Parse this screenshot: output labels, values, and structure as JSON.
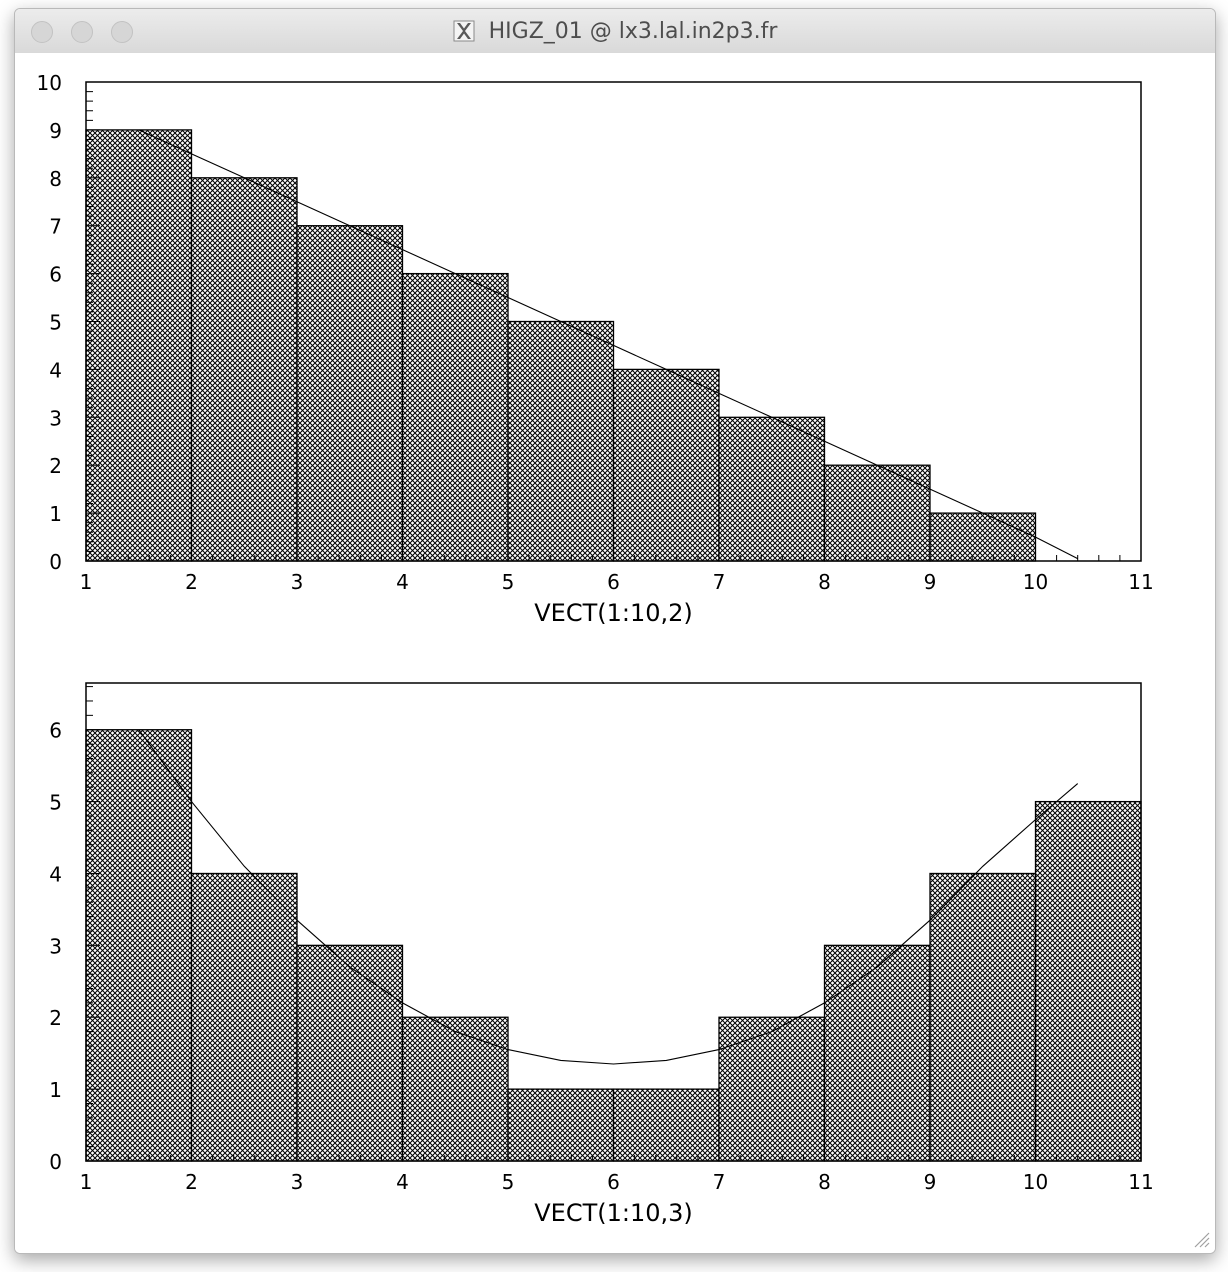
{
  "window": {
    "title": "HIGZ_01 @ lx3.lal.in2p3.fr",
    "x_icon": "x11-icon",
    "buttons": [
      "close-button",
      "minimize-button",
      "zoom-button"
    ]
  },
  "chart_data": [
    {
      "type": "bar",
      "xlabel": "VECT(1:10,2)",
      "ylabel": "",
      "bins": [
        [
          1,
          2
        ],
        [
          2,
          3
        ],
        [
          3,
          4
        ],
        [
          4,
          5
        ],
        [
          5,
          6
        ],
        [
          6,
          7
        ],
        [
          7,
          8
        ],
        [
          8,
          9
        ],
        [
          9,
          10
        ],
        [
          10,
          11
        ]
      ],
      "values": [
        9,
        8,
        7,
        6,
        5,
        4,
        3,
        2,
        1,
        0
      ],
      "xlim": [
        1,
        11
      ],
      "ylim": [
        0,
        10
      ],
      "xticks": [
        "1",
        "2",
        "3",
        "4",
        "5",
        "6",
        "7",
        "8",
        "9",
        "10",
        "11"
      ],
      "yticks": [
        "0",
        "1",
        "2",
        "3",
        "4",
        "5",
        "6",
        "7",
        "8",
        "9",
        "10"
      ],
      "fill": "cross-hatch",
      "fit_curve": {
        "x": [
          1.5,
          2.0,
          2.5,
          3.0,
          3.5,
          4.0,
          4.5,
          5.0,
          5.5,
          6.0,
          6.5,
          7.0,
          7.5,
          8.0,
          8.5,
          9.0,
          9.5,
          10.0,
          10.4
        ],
        "y": [
          9.0,
          8.5,
          8.0,
          7.5,
          7.0,
          6.5,
          6.0,
          5.5,
          5.0,
          4.5,
          4.0,
          3.5,
          3.0,
          2.5,
          2.0,
          1.5,
          1.0,
          0.5,
          0.05
        ]
      }
    },
    {
      "type": "bar",
      "xlabel": "VECT(1:10,3)",
      "ylabel": "",
      "bins": [
        [
          1,
          2
        ],
        [
          2,
          3
        ],
        [
          3,
          4
        ],
        [
          4,
          5
        ],
        [
          5,
          6
        ],
        [
          6,
          7
        ],
        [
          7,
          8
        ],
        [
          8,
          9
        ],
        [
          9,
          10
        ],
        [
          10,
          11
        ]
      ],
      "values": [
        6,
        4,
        3,
        2,
        1,
        1,
        2,
        3,
        4,
        5
      ],
      "xlim": [
        1,
        11
      ],
      "ylim": [
        0,
        6.65
      ],
      "xticks": [
        "1",
        "2",
        "3",
        "4",
        "5",
        "6",
        "7",
        "8",
        "9",
        "10",
        "11"
      ],
      "yticks": [
        "0",
        "1",
        "2",
        "3",
        "4",
        "5",
        "6"
      ],
      "fill": "cross-hatch",
      "fit_curve": {
        "x": [
          1.5,
          2.0,
          2.5,
          3.0,
          3.5,
          4.0,
          4.5,
          5.0,
          5.5,
          6.0,
          6.5,
          7.0,
          7.5,
          8.0,
          8.5,
          9.0,
          9.5,
          10.0,
          10.4
        ],
        "y": [
          6.0,
          5.0,
          4.1,
          3.35,
          2.7,
          2.2,
          1.8,
          1.55,
          1.4,
          1.35,
          1.4,
          1.55,
          1.8,
          2.2,
          2.7,
          3.35,
          4.1,
          4.75,
          5.25
        ]
      }
    }
  ]
}
